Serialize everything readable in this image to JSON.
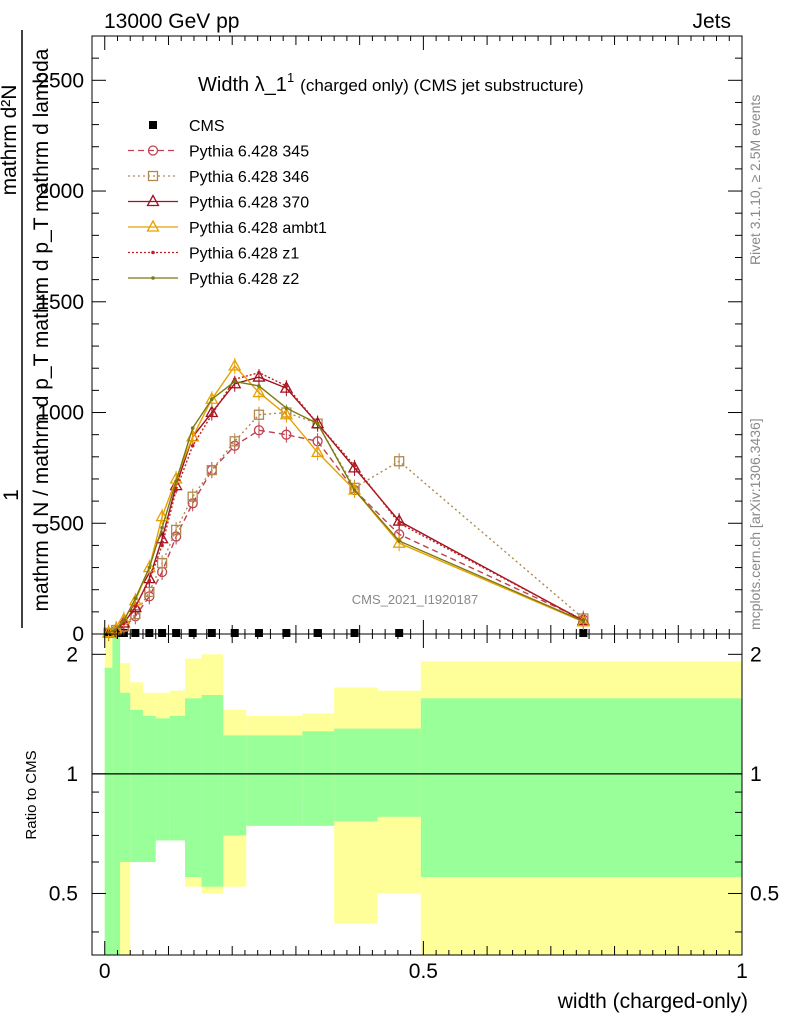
{
  "header": {
    "left": "13000 GeV pp",
    "right": "Jets"
  },
  "side_labels": {
    "rivet": "Rivet 3.1.10, ≥ 2.5M events",
    "mcplots": "mcplots.cern.ch [arXiv:1306.3436]"
  },
  "chart_data": {
    "type": "line",
    "title": "Width λ_1¹ (charged only) (CMS jet substructure)",
    "title_main": "Width λ_1",
    "title_sup": "1",
    "title_suffix": "(charged only) (CMS jet substructure)",
    "watermark": "CMS_2021_I1920187",
    "xlabel": "width (charged-only)",
    "ylabel_num": "1",
    "ylabel_den": "mathrm d N / mathrm d p_T mathrm d p_T mathrm d lambda",
    "ylabel_top": "mathrm d²N",
    "ratio_ylabel": "Ratio to CMS",
    "xlim": [
      -0.02,
      1.0
    ],
    "ylim": [
      0,
      2700
    ],
    "ratio_ylim": [
      0.35,
      2.25
    ],
    "ratio_log": true,
    "x_ticks": [
      "0",
      "0.5",
      "1"
    ],
    "y_ticks": [
      "0",
      "500",
      "1000",
      "1500",
      "2000",
      "2500"
    ],
    "ratio_ticks": [
      "0.5",
      "1",
      "2"
    ],
    "legend_position": "top-left",
    "x": [
      0.006,
      0.018,
      0.03,
      0.048,
      0.07,
      0.09,
      0.112,
      0.138,
      0.168,
      0.204,
      0.242,
      0.285,
      0.334,
      0.392,
      0.462,
      0.751
    ],
    "series": [
      {
        "name": "CMS",
        "color": "#000000",
        "marker": "square",
        "dash": "",
        "values": [
          2,
          2,
          2,
          2,
          2,
          2,
          2,
          2,
          2,
          2,
          2,
          2,
          2,
          2,
          2,
          2
        ]
      },
      {
        "name": "Pythia 6.428 345",
        "color": "#c04050",
        "marker": "circle",
        "dash": "6,4",
        "values": [
          5,
          15,
          30,
          80,
          170,
          280,
          440,
          590,
          740,
          850,
          920,
          900,
          870,
          650,
          450,
          65
        ]
      },
      {
        "name": "Pythia 6.428 346",
        "color": "#b08850",
        "marker": "square-open",
        "dash": "2,3",
        "values": [
          5,
          18,
          35,
          90,
          190,
          320,
          470,
          620,
          740,
          870,
          990,
          1000,
          950,
          660,
          780,
          70
        ]
      },
      {
        "name": "Pythia 6.428 370",
        "color": "#a01020",
        "marker": "triangle-open",
        "dash": "",
        "values": [
          5,
          20,
          50,
          120,
          250,
          430,
          670,
          890,
          1000,
          1130,
          1160,
          1110,
          950,
          750,
          510,
          60
        ]
      },
      {
        "name": "Pythia 6.428 ambt1",
        "color": "#e8a000",
        "marker": "triangle-open",
        "dash": "",
        "values": [
          6,
          22,
          65,
          150,
          300,
          530,
          700,
          890,
          1060,
          1210,
          1090,
          990,
          820,
          650,
          410,
          55
        ]
      },
      {
        "name": "Pythia 6.428 z1",
        "color": "#c02020",
        "marker": "dot",
        "dash": "2,2",
        "values": [
          5,
          20,
          48,
          125,
          240,
          400,
          650,
          850,
          990,
          1150,
          1180,
          1120,
          950,
          760,
          500,
          62
        ]
      },
      {
        "name": "Pythia 6.428 z2",
        "color": "#7a7a10",
        "marker": "dot",
        "dash": "",
        "values": [
          6,
          22,
          60,
          160,
          300,
          480,
          690,
          930,
          1060,
          1140,
          1120,
          1020,
          950,
          650,
          420,
          58
        ]
      }
    ],
    "ratio_bins": [
      0.0,
      0.012,
      0.024,
      0.04,
      0.06,
      0.08,
      0.102,
      0.126,
      0.152,
      0.186,
      0.222,
      0.264,
      0.31,
      0.36,
      0.428,
      0.496,
      1.0
    ],
    "ratio_inner_up": [
      1.85,
      2.3,
      1.6,
      1.45,
      1.4,
      1.38,
      1.4,
      1.55,
      1.58,
      1.25,
      1.25,
      1.25,
      1.28,
      1.3,
      1.3,
      1.55
    ],
    "ratio_inner_dn": [
      0.35,
      0.35,
      0.6,
      0.6,
      0.6,
      0.68,
      0.68,
      0.55,
      0.52,
      0.7,
      0.74,
      0.74,
      0.74,
      0.76,
      0.78,
      0.55
    ],
    "ratio_outer_up": [
      2.25,
      2.3,
      1.9,
      1.7,
      1.6,
      1.6,
      1.62,
      1.95,
      2.0,
      1.45,
      1.4,
      1.4,
      1.42,
      1.65,
      1.62,
      1.92
    ],
    "ratio_outer_dn": [
      0.35,
      0.35,
      0.35,
      0.7,
      0.72,
      0.8,
      0.8,
      0.52,
      0.5,
      0.52,
      0.86,
      0.86,
      0.86,
      0.42,
      0.5,
      0.35
    ]
  }
}
